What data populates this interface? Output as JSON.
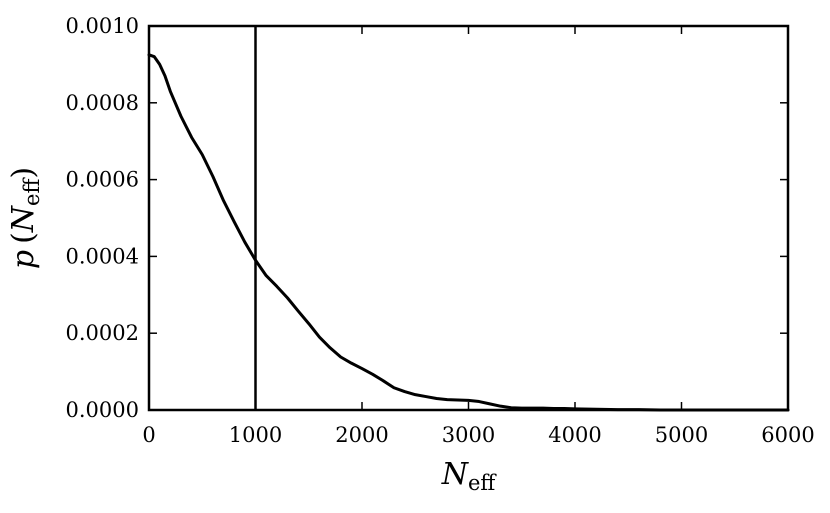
{
  "chart_data": {
    "type": "line",
    "title": "",
    "xlabel": {
      "main": "N",
      "sub": "eff"
    },
    "ylabel": {
      "main": "p",
      "open": "(",
      "var": "N",
      "sub": "eff",
      "close": ")"
    },
    "xlim": [
      0,
      6000
    ],
    "ylim": [
      0,
      0.001
    ],
    "xticks": [
      0,
      1000,
      2000,
      3000,
      4000,
      5000,
      6000
    ],
    "xtick_labels": [
      "0",
      "1000",
      "2000",
      "3000",
      "4000",
      "5000",
      "6000"
    ],
    "yticks": [
      0,
      0.0002,
      0.0004,
      0.0006,
      0.0008,
      0.001
    ],
    "ytick_labels": [
      "0.0000",
      "0.0002",
      "0.0004",
      "0.0006",
      "0.0008",
      "0.0010"
    ],
    "grid": false,
    "vline_x": 1000,
    "line_color": "#000000",
    "series": [
      {
        "x": [
          0,
          50,
          100,
          150,
          200,
          300,
          400,
          500,
          600,
          700,
          800,
          900,
          1000,
          1100,
          1200,
          1300,
          1400,
          1500,
          1600,
          1700,
          1800,
          1900,
          2000,
          2100,
          2200,
          2300,
          2400,
          2500,
          2600,
          2700,
          2800,
          2900,
          3000,
          3100,
          3200,
          3300,
          3400,
          3500,
          3600,
          3700,
          3800,
          3900,
          4000,
          4200,
          4400,
          4600,
          4800,
          5000,
          5200,
          5400,
          5600,
          5800,
          6000
        ],
        "y": [
          0.000925,
          0.00092,
          0.0009,
          0.00087,
          0.00083,
          0.000765,
          0.00071,
          0.000665,
          0.000608,
          0.000545,
          0.00049,
          0.000437,
          0.00039,
          0.00035,
          0.000322,
          0.000292,
          0.000258,
          0.000225,
          0.00019,
          0.000162,
          0.000138,
          0.000122,
          0.000108,
          9.3e-05,
          7.6e-05,
          5.8e-05,
          4.8e-05,
          4e-05,
          3.5e-05,
          3e-05,
          2.7e-05,
          2.6e-05,
          2.5e-05,
          2.2e-05,
          1.6e-05,
          1e-05,
          6e-06,
          5e-06,
          5e-06,
          5e-06,
          4e-06,
          4e-06,
          3e-06,
          2e-06,
          1e-06,
          1e-06,
          0,
          0,
          0,
          0,
          0,
          0,
          0
        ]
      }
    ]
  }
}
